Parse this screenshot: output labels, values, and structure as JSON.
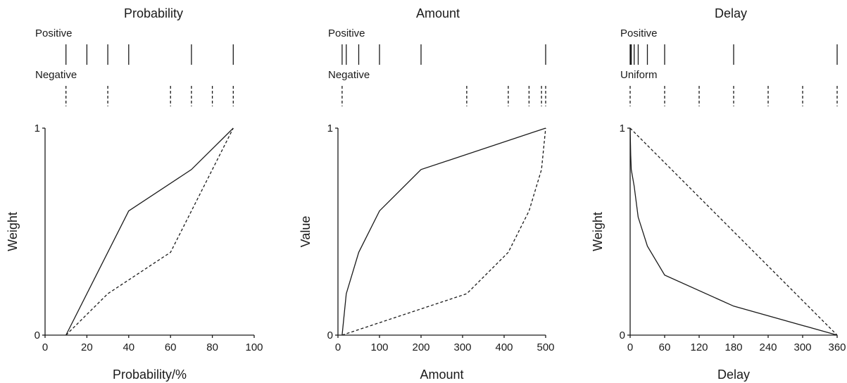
{
  "chart_data": [
    {
      "type": "line",
      "title": "Probability",
      "xlabel": "Probability/%",
      "ylabel": "Weight",
      "xlim": [
        0,
        100
      ],
      "ylim": [
        0,
        1
      ],
      "xticks": [
        "0",
        "20",
        "40",
        "60",
        "80",
        "100"
      ],
      "yticks": [
        "0",
        "1"
      ],
      "rug": [
        {
          "name": "Positive",
          "style": "solid",
          "values": [
            10,
            20,
            30,
            40,
            70,
            90
          ]
        },
        {
          "name": "Negative",
          "style": "dashed",
          "values": [
            10,
            30,
            60,
            70,
            80,
            90
          ]
        }
      ],
      "series": [
        {
          "style": "solid",
          "x": [
            10,
            40,
            70,
            90
          ],
          "y": [
            0,
            0.6,
            0.8,
            1
          ]
        },
        {
          "style": "dashed",
          "x": [
            10,
            30,
            60,
            70,
            80,
            90
          ],
          "y": [
            0,
            0.2,
            0.4,
            0.6,
            0.8,
            1
          ]
        }
      ]
    },
    {
      "type": "line",
      "title": "Amount",
      "xlabel": "Amount",
      "ylabel": "Value",
      "xlim": [
        0,
        500
      ],
      "ylim": [
        0,
        1
      ],
      "xticks": [
        "0",
        "100",
        "200",
        "300",
        "400",
        "500"
      ],
      "yticks": [
        "0",
        "1"
      ],
      "rug": [
        {
          "name": "Positive",
          "style": "solid",
          "values": [
            10,
            20,
            50,
            100,
            200,
            500
          ]
        },
        {
          "name": "Negative",
          "style": "dashed",
          "values": [
            10,
            310,
            410,
            460,
            490,
            500
          ]
        }
      ],
      "series": [
        {
          "style": "solid",
          "x": [
            10,
            20,
            50,
            100,
            200,
            500
          ],
          "y": [
            0,
            0.2,
            0.4,
            0.6,
            0.8,
            1
          ]
        },
        {
          "style": "dashed",
          "x": [
            10,
            310,
            410,
            460,
            490,
            500
          ],
          "y": [
            0,
            0.2,
            0.4,
            0.6,
            0.8,
            1
          ]
        }
      ]
    },
    {
      "type": "line",
      "title": "Delay",
      "xlabel": "Delay",
      "ylabel": "Weight",
      "xlim": [
        0,
        360
      ],
      "ylim": [
        0,
        1
      ],
      "xticks": [
        "0",
        "60",
        "120",
        "180",
        "240",
        "300",
        "360"
      ],
      "yticks": [
        "0",
        "1"
      ],
      "rug": [
        {
          "name": "Positive",
          "style": "solid",
          "values": [
            0,
            1,
            2,
            7,
            14,
            30,
            60,
            180,
            360
          ]
        },
        {
          "name": "Uniform",
          "style": "dashed",
          "values": [
            0,
            60,
            120,
            180,
            240,
            300,
            360
          ]
        }
      ],
      "series": [
        {
          "style": "solid",
          "x": [
            0,
            1,
            2,
            7,
            14,
            30,
            60,
            180,
            360
          ],
          "y": [
            1,
            0.87,
            0.8,
            0.72,
            0.57,
            0.43,
            0.29,
            0.14,
            0
          ]
        },
        {
          "style": "dashed",
          "x": [
            0,
            360
          ],
          "y": [
            1,
            0
          ]
        }
      ]
    }
  ]
}
